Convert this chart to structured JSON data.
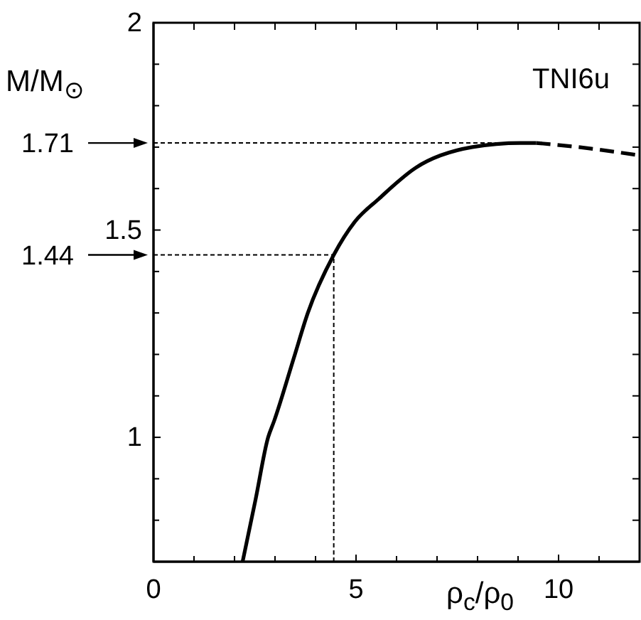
{
  "chart_data": {
    "type": "line",
    "xlabel": "ρ$_{c}$/ρ$_{0}$",
    "ylabel": "M/M$_{⊙}$",
    "annotations": [
      "TNI6u"
    ],
    "series": [
      {
        "color": "#000000",
        "line_style": "solid",
        "x": [
          2.2,
          2.52,
          2.83,
          2.98,
          3.46,
          3.81,
          4.45,
          4.97,
          5.56,
          6.47,
          7.87,
          9.06,
          9.45
        ],
        "values": [
          0.7,
          0.85,
          1.0,
          1.04,
          1.19,
          1.3,
          1.44,
          1.52,
          1.575,
          1.65,
          1.7,
          1.71,
          1.71
        ]
      },
      {
        "color": "#000000",
        "line_style": "dashed",
        "x": [
          9.45,
          10.5,
          12
        ],
        "values": [
          1.71,
          1.7,
          1.68
        ]
      }
    ],
    "xlim": [
      0,
      12
    ],
    "xticks": [
      0,
      {
        "value": 1,
        "label": null
      },
      {
        "value": 2,
        "label": null
      },
      {
        "value": 3,
        "label": null
      },
      {
        "value": 4,
        "label": null
      },
      5,
      {
        "value": 6,
        "label": null
      },
      {
        "value": 7,
        "label": null
      },
      {
        "value": 8,
        "label": null
      },
      {
        "value": 9,
        "label": null
      },
      10,
      {
        "value": 11,
        "label": null
      },
      {
        "value": 12,
        "label": null
      }
    ],
    "ylim": [
      0.7,
      2
    ],
    "yticks": [
      {
        "value": 0.8,
        "label": null
      },
      {
        "value": 0.9,
        "label": null
      },
      1,
      {
        "value": 1.1,
        "label": null
      },
      {
        "value": 1.2,
        "label": null
      },
      {
        "value": 1.3,
        "label": null
      },
      {
        "value": 1.4,
        "label": null
      },
      1.5,
      {
        "value": 1.6,
        "label": null
      },
      {
        "value": 1.7,
        "label": null
      },
      {
        "value": 1.8,
        "label": null
      },
      {
        "value": 1.9,
        "label": null
      },
      2
    ],
    "ref_lines": [
      {
        "axis": "y",
        "value": 1.71,
        "label": "1.71",
        "line_style": "dotted"
      },
      {
        "axis": "y",
        "value": 1.44,
        "label": "1.44",
        "line_style": "dotted"
      },
      {
        "axis": "x",
        "value": 4.45,
        "line_style": "dotted"
      }
    ]
  }
}
